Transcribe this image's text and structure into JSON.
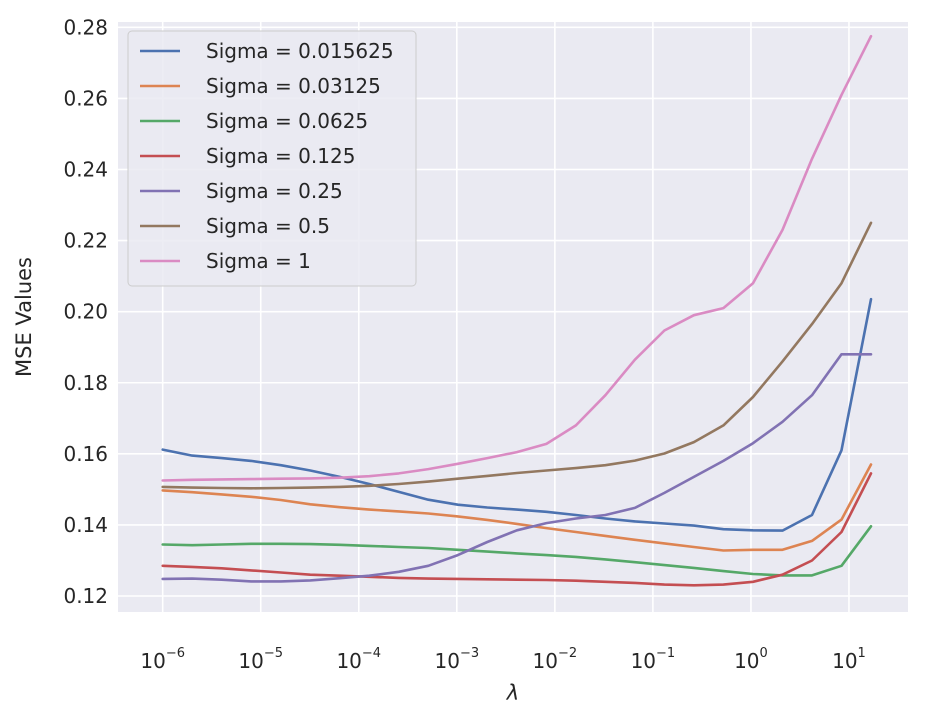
{
  "chart_data": {
    "type": "line",
    "title": "",
    "xlabel": "λ",
    "ylabel": "MSE Values",
    "xscale": "log",
    "xlim": [
      3.5e-07,
      40
    ],
    "ylim": [
      0.1155,
      0.2815
    ],
    "grid": true,
    "legend_position": "upper-left",
    "x_ticks": [
      {
        "base": "10",
        "exp": "−6",
        "value": 1e-06
      },
      {
        "base": "10",
        "exp": "−5",
        "value": 1e-05
      },
      {
        "base": "10",
        "exp": "−4",
        "value": 0.0001
      },
      {
        "base": "10",
        "exp": "−3",
        "value": 0.001
      },
      {
        "base": "10",
        "exp": "−2",
        "value": 0.01
      },
      {
        "base": "10",
        "exp": "−1",
        "value": 0.1
      },
      {
        "base": "10",
        "exp": "0",
        "value": 1
      },
      {
        "base": "10",
        "exp": "1",
        "value": 10
      }
    ],
    "y_ticks": [
      {
        "label": "0.12",
        "value": 0.12
      },
      {
        "label": "0.14",
        "value": 0.14
      },
      {
        "label": "0.16",
        "value": 0.16
      },
      {
        "label": "0.18",
        "value": 0.18
      },
      {
        "label": "0.20",
        "value": 0.2
      },
      {
        "label": "0.22",
        "value": 0.22
      },
      {
        "label": "0.24",
        "value": 0.24
      },
      {
        "label": "0.26",
        "value": 0.26
      },
      {
        "label": "0.28",
        "value": 0.28
      }
    ],
    "x": [
      1e-06,
      2e-06,
      4e-06,
      8e-06,
      1.6e-05,
      3.2e-05,
      6.4e-05,
      0.000128,
      0.000256,
      0.000512,
      0.001024,
      0.002048,
      0.004096,
      0.008192,
      0.016384,
      0.032768,
      0.065536,
      0.131072,
      0.262144,
      0.524288,
      1.048576,
      2.097152,
      4.194304,
      8.388608,
      16.777216
    ],
    "series": [
      {
        "name": "Sigma = 0.015625",
        "color": "#4c72b0",
        "values": [
          0.1612,
          0.1595,
          0.1588,
          0.158,
          0.1568,
          0.1553,
          0.1535,
          0.1515,
          0.1493,
          0.1471,
          0.1457,
          0.1449,
          0.1443,
          0.1437,
          0.1428,
          0.1418,
          0.141,
          0.1404,
          0.1398,
          0.1388,
          0.1385,
          0.1384,
          0.1428,
          0.161,
          0.2035
        ]
      },
      {
        "name": "Sigma = 0.03125",
        "color": "#dd8452",
        "values": [
          0.1497,
          0.1492,
          0.1486,
          0.1479,
          0.147,
          0.1458,
          0.145,
          0.1443,
          0.1438,
          0.1432,
          0.1424,
          0.1414,
          0.1403,
          0.1391,
          0.138,
          0.1369,
          0.1358,
          0.1348,
          0.1338,
          0.1328,
          0.133,
          0.133,
          0.1355,
          0.1415,
          0.157
        ]
      },
      {
        "name": "Sigma = 0.0625",
        "color": "#55a868",
        "values": [
          0.1345,
          0.1343,
          0.1345,
          0.1347,
          0.1347,
          0.1346,
          0.1344,
          0.1341,
          0.1338,
          0.1335,
          0.133,
          0.1325,
          0.132,
          0.1315,
          0.131,
          0.1303,
          0.1295,
          0.1287,
          0.1279,
          0.127,
          0.1262,
          0.1258,
          0.1258,
          0.1285,
          0.1396
        ]
      },
      {
        "name": "Sigma = 0.125",
        "color": "#c44e52",
        "values": [
          0.1285,
          0.1282,
          0.1278,
          0.1272,
          0.1266,
          0.126,
          0.1257,
          0.1254,
          0.1251,
          0.1249,
          0.1248,
          0.1247,
          0.1246,
          0.1245,
          0.1243,
          0.124,
          0.1237,
          0.1232,
          0.123,
          0.1232,
          0.124,
          0.126,
          0.13,
          0.138,
          0.1545
        ]
      },
      {
        "name": "Sigma = 0.25",
        "color": "#8172b3",
        "values": [
          0.1248,
          0.1249,
          0.1246,
          0.1241,
          0.1241,
          0.1244,
          0.125,
          0.1257,
          0.1268,
          0.1285,
          0.1315,
          0.1352,
          0.1385,
          0.1405,
          0.1418,
          0.1428,
          0.1448,
          0.149,
          0.1535,
          0.158,
          0.163,
          0.169,
          0.1765,
          0.188,
          0.188
        ]
      },
      {
        "name": "Sigma = 0.5",
        "color": "#937860",
        "values": [
          0.1507,
          0.1505,
          0.1504,
          0.1503,
          0.1504,
          0.1505,
          0.1507,
          0.151,
          0.1515,
          0.1522,
          0.153,
          0.1538,
          0.1546,
          0.1553,
          0.156,
          0.1568,
          0.1581,
          0.1601,
          0.1633,
          0.168,
          0.176,
          0.186,
          0.1965,
          0.208,
          0.225
        ]
      },
      {
        "name": "Sigma = 1",
        "color": "#da8bc3",
        "values": [
          0.1525,
          0.1527,
          0.1528,
          0.1529,
          0.153,
          0.1531,
          0.1533,
          0.1537,
          0.1545,
          0.1557,
          0.1572,
          0.1588,
          0.1605,
          0.1628,
          0.168,
          0.1765,
          0.1865,
          0.1947,
          0.199,
          0.201,
          0.208,
          0.223,
          0.243,
          0.261,
          0.2775
        ]
      }
    ]
  }
}
